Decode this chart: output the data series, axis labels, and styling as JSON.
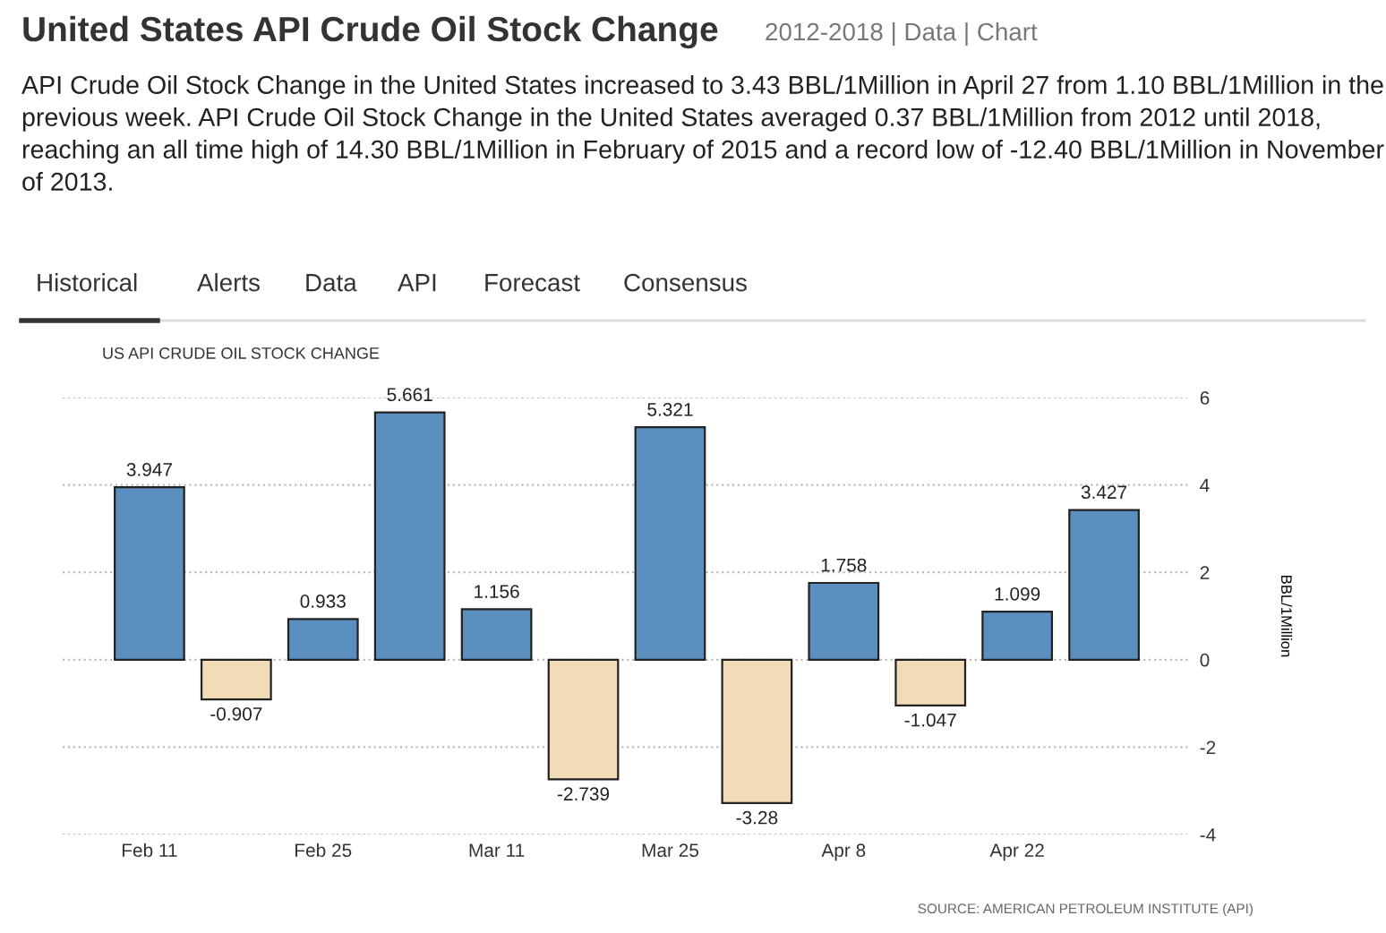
{
  "chart_data": {
    "type": "bar",
    "title": "United States API Crude Oil Stock Change",
    "subtitle": "2012-2018 | Data | Chart",
    "annotations": [
      "API Crude Oil Stock Change in the United States increased to 3.43 BBL/1Million in April 27 from 1.10 BBL/1Million in the previous week. API Crude Oil Stock Change in the United States averaged 0.37 BBL/1Million from 2012 until 2018, reaching an all time high of 14.30 BBL/1Million in February of 2015 and a record low of -12.40 BBL/1Million in November of 2013.",
      "Historical",
      "Alerts",
      "Data",
      "API",
      "Forecast",
      "Consensus",
      "US API CRUDE OIL STOCK CHANGE",
      "SOURCE: AMERICAN PETROLEUM INSTITUTE (API)"
    ],
    "ylabel": "BBL/1Million",
    "categories": [
      "Feb 11",
      null,
      "Feb 25",
      null,
      "Mar 11",
      null,
      "Mar 25",
      null,
      "Apr 8",
      null,
      "Apr 22",
      null
    ],
    "values": [
      3.947,
      -0.907,
      0.933,
      5.661,
      1.156,
      -2.739,
      5.321,
      -3.28,
      1.758,
      -1.047,
      1.099,
      3.427
    ],
    "colors": [
      "#5b8fbf",
      "#f2dcb8",
      "#5b8fbf",
      "#5b8fbf",
      "#5b8fbf",
      "#f2dcb8",
      "#5b8fbf",
      "#f2dcb8",
      "#5b8fbf",
      "#f2dcb8",
      "#5b8fbf",
      "#5b8fbf"
    ],
    "ylim": [
      -4,
      6
    ],
    "yticks": [
      -4,
      -2,
      0,
      2,
      4,
      6
    ],
    "data_labels": true,
    "grid": "y",
    "legend": false
  }
}
